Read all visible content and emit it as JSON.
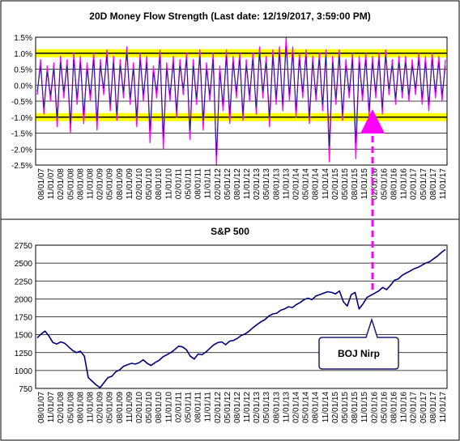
{
  "chart_data": [
    {
      "type": "line",
      "title": "20D Money Flow Strength (Last date: 12/19/2017, 3:59:00 PM)",
      "xlabel": "",
      "ylabel": "",
      "ylim": [
        -2.5,
        1.5
      ],
      "y_ticks": [
        "1.5%",
        "1.0%",
        "0.5%",
        "0.0%",
        "-0.5%",
        "-1.0%",
        "-1.5%",
        "-2.0%",
        "-2.5%"
      ],
      "y_tick_values": [
        1.5,
        1.0,
        0.5,
        0.0,
        -0.5,
        -1.0,
        -1.5,
        -2.0,
        -2.5
      ],
      "highlight_bands": [
        {
          "y": 1.0,
          "color": "#FFFF00"
        },
        {
          "y": -1.0,
          "color": "#FFFF00"
        }
      ],
      "x_ticks": [
        "08/01/07",
        "11/01/07",
        "02/01/08",
        "05/01/08",
        "08/01/08",
        "11/01/08",
        "02/01/09",
        "05/01/09",
        "08/01/09",
        "11/01/09",
        "02/01/10",
        "05/01/10",
        "08/01/10",
        "11/01/10",
        "02/01/11",
        "05/01/11",
        "08/01/11",
        "11/01/11",
        "02/01/12",
        "05/01/12",
        "08/01/12",
        "11/01/12",
        "02/01/13",
        "05/01/13",
        "08/01/13",
        "11/01/13",
        "02/01/14",
        "05/01/14",
        "08/01/14",
        "11/01/14",
        "02/01/15",
        "05/01/15",
        "08/01/15",
        "11/01/15",
        "02/01/16",
        "05/01/16",
        "08/01/16",
        "11/01/16",
        "02/01/17",
        "05/01/17",
        "08/01/17",
        "11/01/17"
      ],
      "series": [
        {
          "color": "#FF00FF",
          "values": [
            -0.3,
            0.8,
            -0.9,
            0.6,
            -0.5,
            0.7,
            -1.3,
            0.9,
            -0.4,
            0.8,
            -1.5,
            1.0,
            -0.6,
            0.9,
            -1.2,
            0.7,
            -0.5,
            1.0,
            -1.4,
            0.8,
            -0.3,
            1.1,
            -0.8,
            0.9,
            -1.1,
            0.8,
            -0.4,
            1.2,
            -0.6,
            0.7,
            -1.3,
            1.0,
            -0.5,
            0.9,
            -1.8,
            0.6,
            -0.4,
            1.1,
            -2.0,
            0.7,
            -0.5,
            0.9,
            -1.0,
            0.8,
            -0.3,
            1.0,
            -1.7,
            0.8,
            -0.6,
            1.1,
            -1.4,
            0.7,
            -0.5,
            1.0,
            -2.5,
            0.6,
            -0.8,
            1.1,
            -1.2,
            0.9,
            -0.4,
            1.0,
            -1.1,
            0.8,
            -0.5,
            1.0,
            -0.9,
            1.2,
            -0.4,
            0.9,
            -1.3,
            1.1,
            -0.6,
            1.2,
            -0.8,
            1.5,
            -0.5,
            1.2,
            -1.0,
            1.0,
            -0.4,
            1.1,
            -1.2,
            0.9,
            -0.5,
            1.0,
            -0.8,
            1.1,
            -2.4,
            0.9,
            -0.6,
            1.1,
            -1.1,
            0.8,
            -0.4,
            1.0,
            -2.3,
            0.9,
            -0.5,
            1.0,
            -1.0,
            0.9,
            -0.4,
            1.0,
            -0.9,
            1.1,
            -0.3,
            0.8,
            -0.6,
            0.9,
            -0.4,
            0.9,
            -0.5,
            0.8,
            -0.3,
            1.0,
            -0.6,
            0.9,
            -0.8,
            1.0,
            -0.4,
            0.9,
            -0.5,
            0.8
          ]
        },
        {
          "color": "#1F1F8F",
          "values": [
            -0.2,
            0.6,
            -0.7,
            0.4,
            -0.3,
            0.5,
            -1.0,
            0.7,
            -0.2,
            0.6,
            -1.2,
            0.8,
            -0.4,
            0.7,
            -0.9,
            0.5,
            -0.3,
            0.8,
            -1.1,
            0.6,
            -0.1,
            0.9,
            -0.6,
            0.7,
            -0.9,
            0.6,
            -0.2,
            1.0,
            -0.4,
            0.5,
            -1.0,
            0.8,
            -0.3,
            0.7,
            -1.4,
            0.4,
            -0.2,
            0.9,
            -1.6,
            0.5,
            -0.3,
            0.7,
            -0.8,
            0.6,
            -0.1,
            0.8,
            -1.4,
            0.6,
            -0.4,
            0.9,
            -1.1,
            0.5,
            -0.3,
            0.8,
            -2.2,
            0.4,
            -0.6,
            0.9,
            -0.9,
            0.7,
            -0.2,
            0.8,
            -0.9,
            0.6,
            -0.3,
            0.8,
            -0.7,
            1.0,
            -0.2,
            0.7,
            -1.0,
            0.9,
            -0.4,
            1.0,
            -0.6,
            1.2,
            -0.3,
            1.0,
            -0.8,
            0.8,
            -0.2,
            0.9,
            -1.0,
            0.7,
            -0.3,
            0.8,
            -0.6,
            0.9,
            -1.9,
            0.7,
            -0.4,
            0.9,
            -0.9,
            0.6,
            -0.2,
            0.8,
            -1.8,
            0.7,
            -0.3,
            0.8,
            -0.8,
            0.7,
            -0.2,
            0.8,
            -0.7,
            0.9,
            -0.1,
            0.6,
            -0.4,
            0.7,
            -0.2,
            0.7,
            -0.3,
            0.6,
            -0.1,
            0.8,
            -0.4,
            0.7,
            -0.6,
            0.8,
            -0.2,
            0.7,
            -0.3,
            0.6
          ]
        }
      ]
    },
    {
      "type": "line",
      "title": "S&P 500",
      "xlabel": "",
      "ylabel": "",
      "ylim": [
        750,
        2750
      ],
      "y_ticks": [
        "2750",
        "2500",
        "2250",
        "2000",
        "1750",
        "1500",
        "1250",
        "1000",
        "750"
      ],
      "y_tick_values": [
        2750,
        2500,
        2250,
        2000,
        1750,
        1500,
        1250,
        1000,
        750
      ],
      "x_ticks": [
        "08/01/07",
        "11/01/07",
        "02/01/08",
        "05/01/08",
        "08/01/08",
        "11/01/08",
        "02/01/09",
        "05/01/09",
        "08/01/09",
        "11/01/09",
        "02/01/10",
        "05/01/10",
        "08/01/10",
        "11/01/10",
        "02/01/11",
        "05/01/11",
        "08/01/11",
        "11/01/11",
        "02/01/12",
        "05/01/12",
        "08/01/12",
        "11/01/12",
        "02/01/13",
        "05/01/13",
        "08/01/13",
        "11/01/13",
        "02/01/14",
        "05/01/14",
        "08/01/14",
        "11/01/14",
        "02/01/15",
        "05/01/15",
        "08/01/15",
        "11/01/15",
        "02/01/16",
        "05/01/16",
        "08/01/16",
        "11/01/16",
        "02/01/17",
        "05/01/17",
        "08/01/17",
        "11/01/17"
      ],
      "series": [
        {
          "color": "#000080",
          "values": [
            1455,
            1510,
            1550,
            1480,
            1390,
            1370,
            1400,
            1380,
            1330,
            1280,
            1250,
            1270,
            1200,
            900,
            850,
            800,
            760,
            830,
            900,
            920,
            980,
            1010,
            1060,
            1080,
            1100,
            1090,
            1110,
            1150,
            1100,
            1070,
            1110,
            1140,
            1190,
            1220,
            1250,
            1290,
            1340,
            1330,
            1290,
            1200,
            1160,
            1230,
            1220,
            1260,
            1310,
            1360,
            1390,
            1400,
            1360,
            1410,
            1420,
            1450,
            1490,
            1510,
            1550,
            1600,
            1640,
            1680,
            1710,
            1760,
            1790,
            1800,
            1840,
            1860,
            1890,
            1880,
            1920,
            1950,
            1990,
            2010,
            1990,
            2040,
            2060,
            2080,
            2100,
            2090,
            2070,
            2110,
            1960,
            1900,
            2060,
            2090,
            1860,
            1930,
            2020,
            2050,
            2080,
            2110,
            2160,
            2130,
            2190,
            2260,
            2280,
            2330,
            2360,
            2390,
            2420,
            2440,
            2470,
            2500,
            2520,
            2560,
            2600,
            2650,
            2690
          ]
        }
      ],
      "annotations": [
        {
          "text": "BOJ Nirp",
          "x": "02/01/16"
        }
      ]
    }
  ]
}
